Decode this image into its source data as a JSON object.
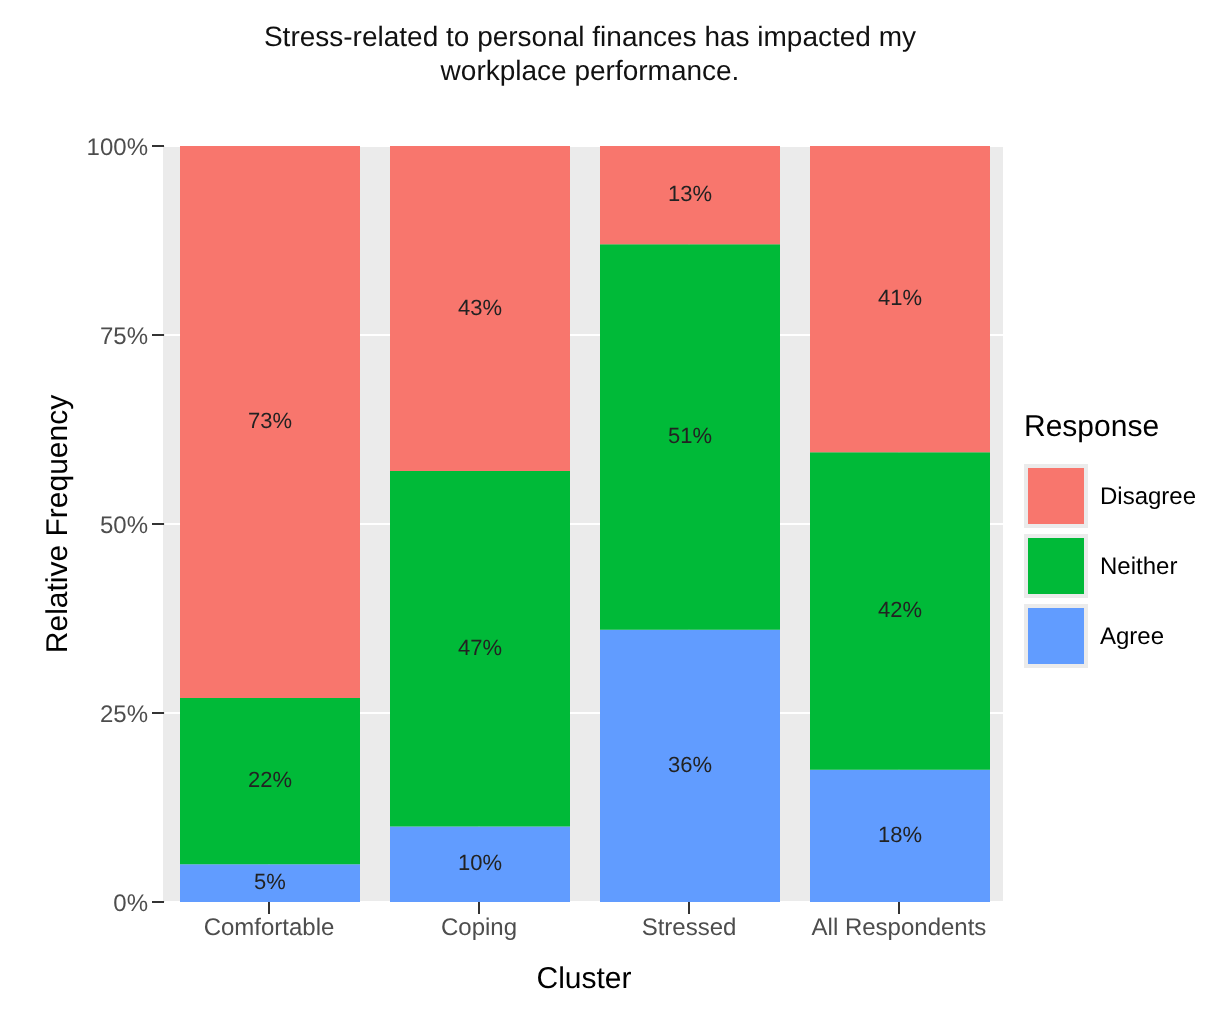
{
  "chart_data": {
    "type": "bar",
    "stacked": true,
    "title": "Stress-related to personal finances has impacted my workplace performance.",
    "xlabel": "Cluster",
    "ylabel": "Relative Frequency",
    "legend_title": "Response",
    "categories": [
      "Comfortable",
      "Coping",
      "Stressed",
      "All Respondents"
    ],
    "series": [
      {
        "name": "Agree",
        "color": "#619cff",
        "values": [
          5,
          10,
          36,
          17.5
        ],
        "value_labels": [
          "5%",
          "10%",
          "36%",
          "18%"
        ]
      },
      {
        "name": "Neither",
        "color": "#00ba38",
        "values": [
          22,
          47,
          51,
          42
        ],
        "value_labels": [
          "22%",
          "47%",
          "51%",
          "42%"
        ]
      },
      {
        "name": "Disagree",
        "color": "#f8766d",
        "values": [
          73,
          43,
          13,
          40.5
        ],
        "value_labels": [
          "73%",
          "43%",
          "13%",
          "41%"
        ]
      }
    ],
    "ylim": [
      0,
      100
    ],
    "yticks": [
      {
        "value": 0,
        "label": "0%"
      },
      {
        "value": 25,
        "label": "25%"
      },
      {
        "value": 50,
        "label": "50%"
      },
      {
        "value": 75,
        "label": "75%"
      },
      {
        "value": 100,
        "label": "100%"
      }
    ],
    "grid": true,
    "legend": "right"
  }
}
